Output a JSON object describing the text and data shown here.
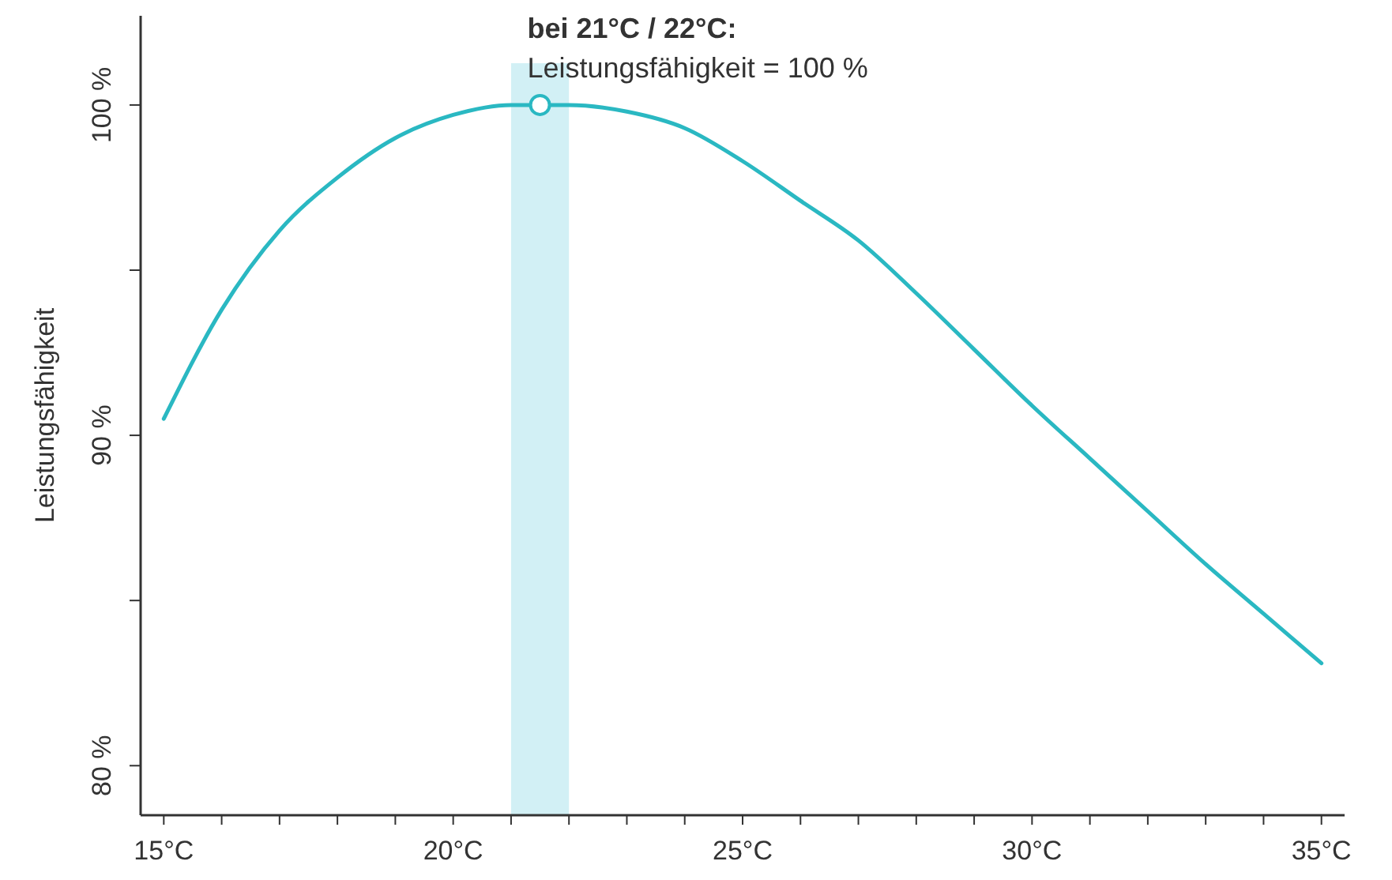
{
  "chart_data": {
    "type": "line",
    "ylabel": "Leistungsfähigkeit",
    "x": [
      15,
      16,
      17,
      18,
      19,
      20,
      21,
      22,
      23,
      24,
      25,
      26,
      27,
      28,
      29,
      30,
      31,
      32,
      33,
      34,
      35
    ],
    "series": [
      {
        "color": "#2ab8c2",
        "values": [
          90.5,
          93.8,
          96.2,
          97.8,
          99.0,
          99.7,
          100.0,
          100.0,
          99.8,
          99.3,
          98.3,
          97.1,
          95.9,
          94.3,
          92.6,
          90.9,
          89.3,
          87.7,
          86.1,
          84.6,
          83.1
        ]
      }
    ],
    "xlim": [
      14.6,
      35.4
    ],
    "ylim": [
      78.5,
      102.7
    ],
    "xticks": [
      {
        "value": 15,
        "label": "15°C"
      },
      {
        "value": 16,
        "label": null
      },
      {
        "value": 17,
        "label": null
      },
      {
        "value": 18,
        "label": null
      },
      {
        "value": 19,
        "label": null
      },
      {
        "value": 20,
        "label": "20°C"
      },
      {
        "value": 21,
        "label": null
      },
      {
        "value": 22,
        "label": null
      },
      {
        "value": 23,
        "label": null
      },
      {
        "value": 24,
        "label": null
      },
      {
        "value": 25,
        "label": "25°C"
      },
      {
        "value": 26,
        "label": null
      },
      {
        "value": 27,
        "label": null
      },
      {
        "value": 28,
        "label": null
      },
      {
        "value": 29,
        "label": null
      },
      {
        "value": 30,
        "label": "30°C"
      },
      {
        "value": 31,
        "label": null
      },
      {
        "value": 32,
        "label": null
      },
      {
        "value": 33,
        "label": null
      },
      {
        "value": 34,
        "label": null
      },
      {
        "value": 35,
        "label": "35°C"
      }
    ],
    "yticks": [
      {
        "value": 80,
        "label": "80 %"
      },
      {
        "value": 85,
        "label": null
      },
      {
        "value": 90,
        "label": "90 %"
      },
      {
        "value": 95,
        "label": null
      },
      {
        "value": 100,
        "label": "100 %"
      }
    ],
    "bands": [
      {
        "axis": "x",
        "from": 21,
        "to": 22,
        "color": "#d2f0f5"
      }
    ],
    "annotations": [
      {
        "text": "bei 21°C / 22°C:",
        "x": 21.5,
        "y": 100
      },
      "Leistungsfähigkeit = 100 %"
    ],
    "grid": false,
    "marker": "none",
    "line_style": "solid"
  }
}
